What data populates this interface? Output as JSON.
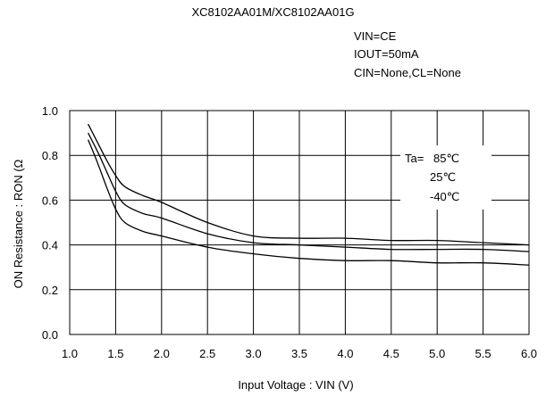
{
  "chart_data": {
    "type": "line",
    "title": "XC8102AA01M/XC8102AA01G",
    "conditions": [
      "VIN=CE",
      "IOUT=50mA",
      "CIN=None,CL=None"
    ],
    "xlabel": "Input Voltage : VIN (V)",
    "ylabel": "ON Resistance : RON (Ω",
    "xlim": [
      1.0,
      6.0
    ],
    "ylim": [
      0.0,
      1.0
    ],
    "xticks": [
      "1.0",
      "1.5",
      "2.0",
      "2.5",
      "3.0",
      "3.5",
      "4.0",
      "4.5",
      "5.0",
      "5.5",
      "6.0"
    ],
    "yticks": [
      "0.0",
      "0.2",
      "0.4",
      "0.6",
      "0.8",
      "1.0"
    ],
    "grid": true,
    "legend_title": "Ta=",
    "legend_placement": "top-right",
    "series": [
      {
        "name": "85℃",
        "x": [
          1.2,
          1.3,
          1.4,
          1.5,
          1.6,
          1.8,
          2.0,
          2.5,
          3.0,
          3.5,
          4.0,
          4.5,
          5.0,
          5.5,
          6.0
        ],
        "y": [
          0.94,
          0.86,
          0.78,
          0.71,
          0.66,
          0.62,
          0.59,
          0.5,
          0.44,
          0.43,
          0.43,
          0.42,
          0.42,
          0.41,
          0.4
        ]
      },
      {
        "name": "25℃",
        "x": [
          1.2,
          1.3,
          1.4,
          1.5,
          1.6,
          1.8,
          2.0,
          2.5,
          3.0,
          3.5,
          4.0,
          4.5,
          5.0,
          5.5,
          6.0
        ],
        "y": [
          0.9,
          0.82,
          0.73,
          0.64,
          0.58,
          0.54,
          0.52,
          0.45,
          0.41,
          0.4,
          0.39,
          0.38,
          0.38,
          0.38,
          0.37
        ]
      },
      {
        "name": "-40℃",
        "x": [
          1.2,
          1.3,
          1.4,
          1.5,
          1.6,
          1.8,
          2.0,
          2.5,
          3.0,
          3.5,
          4.0,
          4.5,
          5.0,
          5.5,
          6.0
        ],
        "y": [
          0.87,
          0.77,
          0.66,
          0.56,
          0.5,
          0.46,
          0.44,
          0.39,
          0.36,
          0.34,
          0.33,
          0.33,
          0.32,
          0.32,
          0.31
        ]
      }
    ],
    "colors": {
      "line": "#000000",
      "grid": "#000000",
      "background": "#ffffff"
    }
  }
}
